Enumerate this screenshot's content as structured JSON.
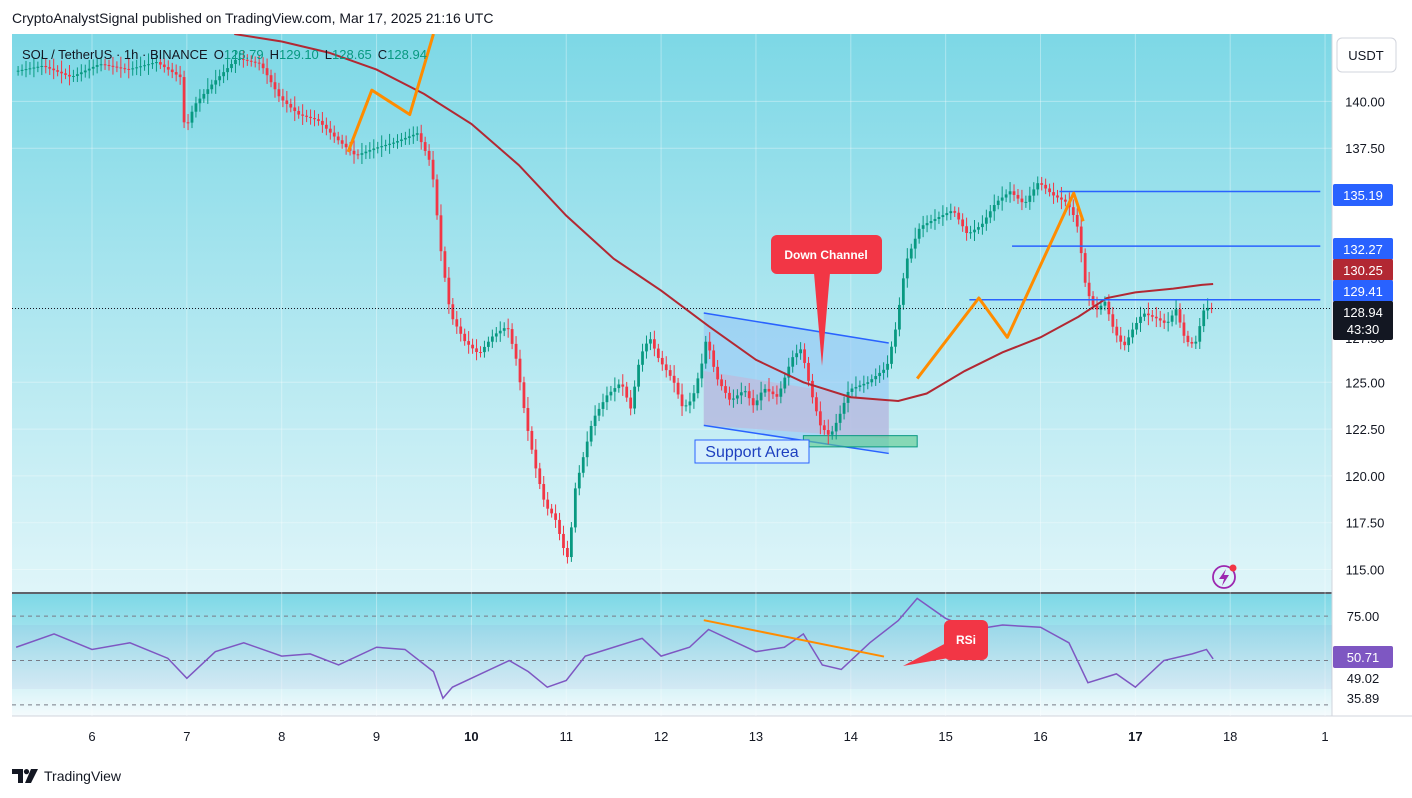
{
  "header": {
    "published_line": "CryptoAnalystSignal published on TradingView.com, Mar 17, 2025 21:16 UTC"
  },
  "footer": {
    "brand": "TradingView"
  },
  "symbol": {
    "name": "SOL",
    "quote": "TetherUS",
    "interval": "1h",
    "exchange": "BINANCE",
    "open_label": "O",
    "open": "128.79",
    "high_label": "H",
    "high": "129.10",
    "low_label": "L",
    "low": "128.65",
    "close_label": "C",
    "close": "128.94"
  },
  "currency_button": "USDT",
  "colors": {
    "up": "#089981",
    "down": "#f23645",
    "background_top": "#7dd8e6",
    "background_bottom": "#dff5f9",
    "ma": "#b22833",
    "level_line": "#2962ff",
    "zigzag": "#ff8c00",
    "callout": "#f23645",
    "rsi": "#7e57c2"
  },
  "price_labels": {
    "level_1": "135.19",
    "level_2": "132.27",
    "ma_value": "130.25",
    "level_3": "129.41",
    "last_price": "128.94",
    "countdown": "43:30",
    "hidden_tick": "127.50"
  },
  "rsi_labels": {
    "upper": "75.00",
    "current": "50.71",
    "ma": "49.02",
    "lower": "35.89"
  },
  "annotations": {
    "down_channel": "Down Channel",
    "support_area": "Support Area",
    "rsi": "RSi"
  },
  "chart_data": [
    {
      "type": "candlestick",
      "title": "SOL / TetherUS · 1h · BINANCE",
      "xlabel": "",
      "ylabel": "",
      "x_ticks": [
        "6",
        "7",
        "8",
        "9",
        "10",
        "11",
        "12",
        "13",
        "14",
        "15",
        "16",
        "17",
        "18",
        "1"
      ],
      "bold_x_ticks": [
        "10",
        "17"
      ],
      "y_ticks": [
        "115.00",
        "117.50",
        "120.00",
        "122.50",
        "125.00",
        "137.50",
        "140.00"
      ],
      "ylim": [
        113.8,
        143.6
      ],
      "grid": true,
      "series": [
        {
          "name": "",
          "kind": "close_path",
          "points": [
            [
              5.2,
              141.6
            ],
            [
              5.5,
              141.9
            ],
            [
              5.8,
              141.3
            ],
            [
              6.1,
              142.0
            ],
            [
              6.4,
              141.7
            ],
            [
              6.7,
              142.1
            ],
            [
              6.95,
              141.3
            ],
            [
              7.0,
              138.4
            ],
            [
              7.1,
              139.8
            ],
            [
              7.3,
              141.0
            ],
            [
              7.55,
              142.3
            ],
            [
              7.8,
              142.0
            ],
            [
              8.0,
              140.2
            ],
            [
              8.2,
              139.3
            ],
            [
              8.4,
              139.0
            ],
            [
              8.6,
              138.0
            ],
            [
              8.8,
              137.1
            ],
            [
              9.0,
              137.5
            ],
            [
              9.2,
              137.8
            ],
            [
              9.45,
              138.3
            ],
            [
              9.6,
              136.6
            ],
            [
              9.7,
              132.0
            ],
            [
              9.8,
              128.6
            ],
            [
              9.95,
              127.2
            ],
            [
              10.1,
              126.5
            ],
            [
              10.25,
              127.5
            ],
            [
              10.4,
              128.0
            ],
            [
              10.5,
              126.1
            ],
            [
              10.6,
              122.8
            ],
            [
              10.7,
              120.4
            ],
            [
              10.8,
              118.4
            ],
            [
              10.9,
              117.8
            ],
            [
              11.0,
              116.0
            ],
            [
              11.05,
              115.5
            ],
            [
              11.1,
              119.0
            ],
            [
              11.2,
              121.0
            ],
            [
              11.3,
              123.0
            ],
            [
              11.45,
              124.3
            ],
            [
              11.6,
              125.0
            ],
            [
              11.7,
              123.6
            ],
            [
              11.8,
              126.4
            ],
            [
              11.9,
              127.4
            ],
            [
              12.0,
              126.2
            ],
            [
              12.15,
              125.1
            ],
            [
              12.25,
              123.6
            ],
            [
              12.35,
              124.1
            ],
            [
              12.45,
              126.0
            ],
            [
              12.5,
              127.4
            ],
            [
              12.6,
              125.3
            ],
            [
              12.75,
              124.0
            ],
            [
              12.9,
              124.6
            ],
            [
              13.0,
              123.7
            ],
            [
              13.1,
              124.7
            ],
            [
              13.25,
              124.2
            ],
            [
              13.4,
              126.3
            ],
            [
              13.5,
              126.8
            ],
            [
              13.6,
              124.5
            ],
            [
              13.7,
              122.7
            ],
            [
              13.8,
              122.1
            ],
            [
              13.9,
              123.2
            ],
            [
              14.0,
              124.6
            ],
            [
              14.2,
              125.0
            ],
            [
              14.4,
              125.8
            ],
            [
              14.5,
              128.0
            ],
            [
              14.6,
              131.4
            ],
            [
              14.75,
              133.3
            ],
            [
              14.9,
              133.7
            ],
            [
              15.1,
              134.2
            ],
            [
              15.25,
              132.9
            ],
            [
              15.4,
              133.4
            ],
            [
              15.55,
              134.6
            ],
            [
              15.7,
              135.2
            ],
            [
              15.85,
              134.5
            ],
            [
              16.0,
              135.7
            ],
            [
              16.15,
              135.0
            ],
            [
              16.3,
              134.6
            ],
            [
              16.4,
              133.6
            ],
            [
              16.45,
              131.9
            ],
            [
              16.5,
              130.0
            ],
            [
              16.6,
              128.8
            ],
            [
              16.7,
              129.3
            ],
            [
              16.8,
              127.7
            ],
            [
              16.9,
              126.9
            ],
            [
              17.0,
              127.9
            ],
            [
              17.1,
              128.7
            ],
            [
              17.25,
              128.4
            ],
            [
              17.35,
              128.1
            ],
            [
              17.45,
              128.9
            ],
            [
              17.55,
              127.2
            ],
            [
              17.65,
              127.0
            ],
            [
              17.75,
              129.0
            ],
            [
              17.82,
              128.94
            ]
          ]
        },
        {
          "name": "",
          "kind": "moving_average",
          "points": [
            [
              7.5,
              143.6
            ],
            [
              8.0,
              143.2
            ],
            [
              8.5,
              142.6
            ],
            [
              9.0,
              141.7
            ],
            [
              9.5,
              140.4
            ],
            [
              10.0,
              138.8
            ],
            [
              10.5,
              136.6
            ],
            [
              11.0,
              133.9
            ],
            [
              11.5,
              131.6
            ],
            [
              12.0,
              129.9
            ],
            [
              12.5,
              128.0
            ],
            [
              13.0,
              126.2
            ],
            [
              13.5,
              125.0
            ],
            [
              14.0,
              124.2
            ],
            [
              14.5,
              124.0
            ],
            [
              14.8,
              124.4
            ],
            [
              15.2,
              125.6
            ],
            [
              15.6,
              126.6
            ],
            [
              16.0,
              127.4
            ],
            [
              16.4,
              128.5
            ],
            [
              16.7,
              129.5
            ],
            [
              17.0,
              129.8
            ],
            [
              17.4,
              130.0
            ],
            [
              17.7,
              130.2
            ],
            [
              17.82,
              130.25
            ]
          ]
        }
      ],
      "horizontal_levels": [
        {
          "value": 135.19,
          "x_from": 16.2,
          "x_to": 18.95
        },
        {
          "value": 132.27,
          "x_from": 15.7,
          "x_to": 18.95
        },
        {
          "value": 129.41,
          "x_from": 15.25,
          "x_to": 18.95
        }
      ],
      "last_price_line": 128.94,
      "channel": {
        "upper": [
          [
            12.45,
            128.7
          ],
          [
            14.4,
            127.1
          ]
        ],
        "lower": [
          [
            12.45,
            122.7
          ],
          [
            14.4,
            121.2
          ]
        ]
      },
      "support_zone": {
        "x": [
          13.5,
          14.7
        ],
        "y": [
          121.55,
          122.15
        ]
      },
      "zigzags": [
        [
          [
            8.7,
            137.3
          ],
          [
            8.95,
            140.6
          ],
          [
            9.35,
            139.3
          ],
          [
            9.6,
            143.6
          ]
        ],
        [
          [
            14.7,
            125.2
          ],
          [
            15.35,
            129.5
          ],
          [
            15.65,
            127.4
          ],
          [
            16.35,
            135.1
          ],
          [
            16.45,
            133.6
          ]
        ]
      ]
    },
    {
      "type": "line",
      "title": "",
      "xlabel": "",
      "ylabel": "",
      "ylim": [
        25,
        80
      ],
      "y_ticks": [
        "75.00",
        "35.89"
      ],
      "bands": [
        70,
        50,
        30
      ],
      "grid": true,
      "series": [
        {
          "name": "",
          "points": [
            [
              5.2,
              56
            ],
            [
              5.6,
              62
            ],
            [
              6.0,
              55
            ],
            [
              6.4,
              58
            ],
            [
              6.8,
              51
            ],
            [
              7.0,
              42
            ],
            [
              7.3,
              54
            ],
            [
              7.6,
              58
            ],
            [
              8.0,
              52
            ],
            [
              8.3,
              53
            ],
            [
              8.6,
              48
            ],
            [
              9.0,
              56
            ],
            [
              9.3,
              55
            ],
            [
              9.6,
              45
            ],
            [
              9.7,
              33
            ],
            [
              9.8,
              38
            ],
            [
              10.1,
              44
            ],
            [
              10.4,
              50
            ],
            [
              10.6,
              45
            ],
            [
              10.8,
              38
            ],
            [
              11.0,
              41
            ],
            [
              11.2,
              52
            ],
            [
              11.5,
              56
            ],
            [
              11.8,
              60
            ],
            [
              12.0,
              52
            ],
            [
              12.3,
              56
            ],
            [
              12.5,
              64
            ],
            [
              12.8,
              58
            ],
            [
              13.0,
              54
            ],
            [
              13.3,
              56
            ],
            [
              13.5,
              62
            ],
            [
              13.7,
              48
            ],
            [
              13.9,
              46
            ],
            [
              14.2,
              58
            ],
            [
              14.5,
              68
            ],
            [
              14.7,
              78
            ],
            [
              15.0,
              69
            ],
            [
              15.3,
              64
            ],
            [
              15.6,
              66
            ],
            [
              16.0,
              65
            ],
            [
              16.3,
              58
            ],
            [
              16.5,
              40
            ],
            [
              16.8,
              44
            ],
            [
              17.0,
              38
            ],
            [
              17.3,
              50
            ],
            [
              17.6,
              53
            ],
            [
              17.75,
              55
            ],
            [
              17.82,
              50.71
            ]
          ]
        }
      ],
      "trendline": [
        [
          12.45,
          68.2
        ],
        [
          14.35,
          51.8
        ]
      ]
    }
  ]
}
